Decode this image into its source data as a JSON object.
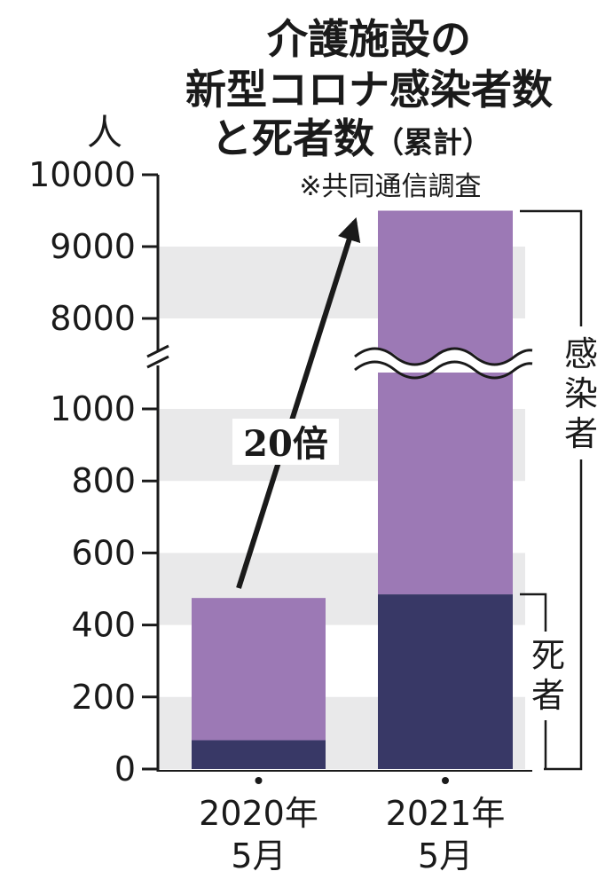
{
  "title": {
    "line1": "介護施設の",
    "line2": "新型コロナ感染者数",
    "line3_main": "と死者数",
    "line3_suffix": "（累計）"
  },
  "source": "※共同通信調査",
  "chart_data": {
    "type": "bar",
    "stacked": true,
    "y_unit": "人",
    "y_axis_broken": true,
    "y_ticks_lower": [
      0,
      200,
      400,
      600,
      800,
      1000
    ],
    "y_ticks_upper": [
      8000,
      9000,
      10000
    ],
    "y_tick_labels": [
      "0",
      "200",
      "400",
      "600",
      "800",
      "1000",
      "8000",
      "9000",
      "10000"
    ],
    "categories": [
      {
        "line1": "2020年",
        "line2": "5月"
      },
      {
        "line1": "2021年",
        "line2": "5月"
      }
    ],
    "series": [
      {
        "name": "死者",
        "color": "#383866",
        "values": [
          80,
          485
        ]
      },
      {
        "name": "感染者",
        "color": "#9c79b5",
        "total_values": [
          475,
          9500
        ]
      }
    ],
    "side_labels": {
      "infected": "感染者",
      "deaths": "死者"
    },
    "annotation": {
      "multiplier_number": "20",
      "multiplier_suffix": "倍"
    },
    "grid": "alternating horizontal bands",
    "colors": {
      "band": "#e9e9ea",
      "deaths": "#383866",
      "infected": "#9c79b5",
      "axis": "#1a1a1a"
    }
  }
}
